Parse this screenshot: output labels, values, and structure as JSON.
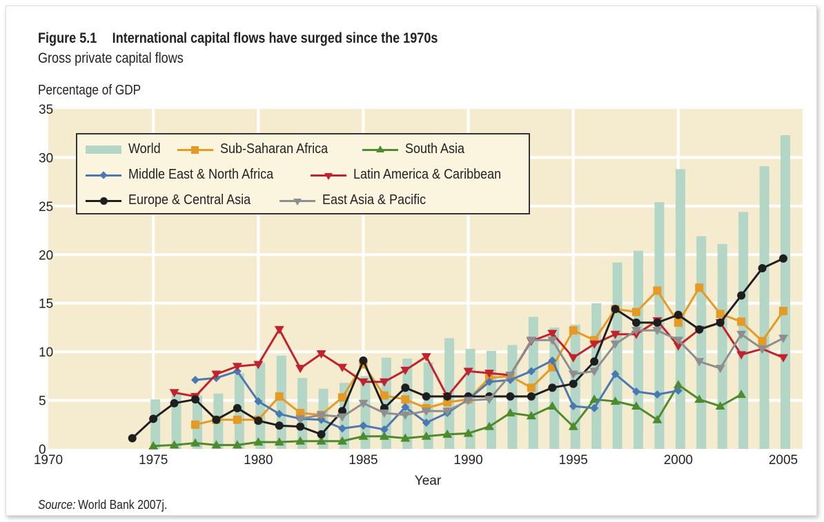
{
  "figure": {
    "number": "Figure 5.1",
    "title": "International capital flows have surged since the 1970s",
    "subtitle": "Gross private capital flows",
    "source_label": "Source:",
    "source_text": "World Bank 2007j."
  },
  "chart_data": {
    "type": "bar+line",
    "title": "International capital flows have surged since the 1970s",
    "subtitle": "Gross private capital flows",
    "ylabel": "Percentage of GDP",
    "xlabel": "Year",
    "xlim": [
      1970,
      2005
    ],
    "ylim": [
      0,
      35
    ],
    "xticks": [
      "1970",
      "1975",
      "1980",
      "1985",
      "1990",
      "1995",
      "2000",
      "2005"
    ],
    "yticks": [
      "0",
      "5",
      "10",
      "15",
      "20",
      "25",
      "30",
      "35"
    ],
    "grid": true,
    "legend_position": "top-left",
    "colors": {
      "background": "#f5ecd0",
      "grid": "#ffffff"
    },
    "series": [
      {
        "name": "World",
        "kind": "bar",
        "color": "#b3d6c7",
        "start": 1975,
        "values": [
          5.1,
          5.7,
          5.5,
          5.7,
          7.8,
          8.9,
          9.6,
          7.3,
          6.2,
          6.8,
          7.5,
          9.4,
          9.3,
          8.9,
          11.4,
          10.3,
          10.1,
          10.7,
          13.6,
          12.5,
          12.8,
          15.0,
          19.2,
          20.4,
          25.4,
          28.8,
          21.9,
          21.1,
          24.4,
          29.1,
          32.3
        ]
      },
      {
        "name": "Sub-Saharan Africa",
        "kind": "line",
        "marker": "square",
        "color": "#e49a24",
        "start": 1977,
        "values": [
          2.5,
          3.0,
          3.0,
          3.0,
          5.4,
          3.7,
          3.5,
          5.3,
          8.7,
          5.5,
          5.1,
          4.2,
          4.8,
          5.1,
          7.3,
          7.5,
          6.3,
          8.4,
          12.2,
          11.2,
          14.4,
          14.1,
          16.3,
          13.0,
          16.6,
          13.9,
          13.1,
          11.1,
          14.2
        ]
      },
      {
        "name": "South Asia",
        "kind": "line",
        "marker": "triangle-up",
        "color": "#4e8a2e",
        "start": 1975,
        "values": [
          0.3,
          0.4,
          0.6,
          0.4,
          0.4,
          0.7,
          0.7,
          0.8,
          0.8,
          0.8,
          1.3,
          1.3,
          1.1,
          1.3,
          1.5,
          1.6,
          2.3,
          3.7,
          3.4,
          4.4,
          2.3,
          5.1,
          4.9,
          4.4,
          3.0,
          6.6,
          5.1,
          4.4,
          5.6
        ]
      },
      {
        "name": "Middle East & North Africa",
        "kind": "line",
        "marker": "diamond",
        "color": "#4a78b0",
        "start": 1977,
        "values": [
          7.1,
          7.3,
          8.0,
          4.9,
          3.6,
          3.1,
          3.0,
          2.1,
          2.4,
          2.0,
          4.3,
          2.7,
          3.7,
          5.1,
          6.9,
          7.1,
          8.0,
          9.1,
          4.4,
          4.2,
          7.7,
          5.9,
          5.6,
          6.0
        ]
      },
      {
        "name": "Latin America & Caribbean",
        "kind": "line",
        "marker": "triangle-down",
        "color": "#c0232e",
        "start": 1976,
        "values": [
          5.8,
          5.4,
          7.7,
          8.5,
          8.7,
          12.3,
          8.3,
          9.8,
          8.4,
          6.9,
          6.9,
          8.1,
          9.5,
          5.4,
          8.0,
          7.8,
          7.6,
          11.1,
          11.9,
          9.4,
          10.8,
          11.8,
          11.8,
          13.2,
          10.6,
          12.3,
          13.0,
          9.7,
          10.3,
          9.4
        ]
      },
      {
        "name": "Europe & Central Asia",
        "kind": "line",
        "marker": "circle",
        "color": "#1e1e1e",
        "start": 1974,
        "values": [
          1.1,
          3.1,
          4.7,
          5.1,
          3.0,
          4.2,
          2.9,
          2.4,
          2.3,
          1.5,
          3.9,
          9.1,
          4.2,
          6.3,
          5.4,
          5.4,
          5.4,
          5.4,
          5.4,
          5.4,
          6.3,
          6.7,
          9.0,
          14.4,
          13.0,
          13.0,
          13.8,
          12.3,
          13.0,
          15.8,
          18.6,
          19.6
        ]
      },
      {
        "name": "East Asia & Pacific",
        "kind": "line",
        "marker": "triangle-down",
        "color": "#8e8e8e",
        "start": 1982,
        "values": [
          3.1,
          3.5,
          3.3,
          4.7,
          3.7,
          3.5,
          3.9,
          3.9,
          5.0,
          5.1,
          7.6,
          11.2,
          11.2,
          7.7,
          8.0,
          10.8,
          12.2,
          12.2,
          11.2,
          9.0,
          8.3,
          11.8,
          10.3,
          11.4
        ]
      }
    ]
  }
}
